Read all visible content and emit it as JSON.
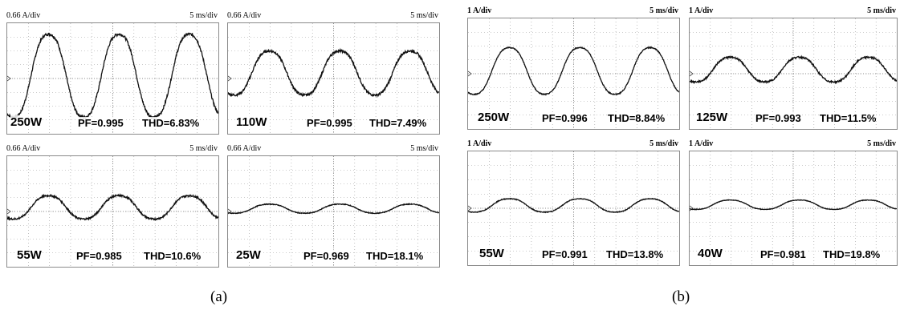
{
  "captions": [
    "(a)",
    "(b)"
  ],
  "chart_data": [
    {
      "group": "a",
      "type": "line",
      "ydiv": "0.66 A/div",
      "xdiv": "5 ms/div",
      "label_power": "250W",
      "label_pf": "PF=0.995",
      "label_thd": "THD=6.83%",
      "amplitude_div": 3.2,
      "offset_div": 0.2,
      "cycles": 3,
      "noise": 0.03
    },
    {
      "group": "a",
      "type": "line",
      "ydiv": "0.66 A/div",
      "xdiv": "5 ms/div",
      "label_power": "110W",
      "label_pf": "PF=0.995",
      "label_thd": "THD=7.49%",
      "amplitude_div": 1.7,
      "offset_div": 0.4,
      "cycles": 3,
      "noise": 0.05
    },
    {
      "group": "a",
      "type": "line",
      "ydiv": "0.66 A/div",
      "xdiv": "5 ms/div",
      "label_power": "55W",
      "label_pf": "PF=0.985",
      "label_thd": "THD=10.6%",
      "amplitude_div": 0.9,
      "offset_div": 0.3,
      "cycles": 3,
      "noise": 0.07
    },
    {
      "group": "a",
      "type": "line",
      "ydiv": "0.66 A/div",
      "xdiv": "5 ms/div",
      "label_power": "25W",
      "label_pf": "PF=0.969",
      "label_thd": "THD=18.1%",
      "amplitude_div": 0.35,
      "offset_div": 0.2,
      "cycles": 3,
      "noise": 0.07
    },
    {
      "group": "b",
      "type": "line",
      "ydiv": "1 A/div",
      "xdiv": "5 ms/div",
      "label_power": "250W",
      "label_pf": "PF=0.996",
      "label_thd": "THD=8.84%",
      "amplitude_div": 1.8,
      "offset_div": 0.2,
      "cycles": 3,
      "noise": 0.02
    },
    {
      "group": "b",
      "type": "line",
      "ydiv": "1 A/div",
      "xdiv": "5 ms/div",
      "label_power": "125W",
      "label_pf": "PF=0.993",
      "label_thd": "THD=11.5%",
      "amplitude_div": 0.95,
      "offset_div": 0.3,
      "cycles": 3,
      "noise": 0.06
    },
    {
      "group": "b",
      "type": "line",
      "ydiv": "1 A/div",
      "xdiv": "5 ms/div",
      "label_power": "55W",
      "label_pf": "PF=0.991",
      "label_thd": "THD=13.8%",
      "amplitude_div": 0.5,
      "offset_div": 0.2,
      "cycles": 3,
      "noise": 0.05
    },
    {
      "group": "b",
      "type": "line",
      "ydiv": "1 A/div",
      "xdiv": "5 ms/div",
      "label_power": "40W",
      "label_pf": "PF=0.981",
      "label_thd": "THD=19.8%",
      "amplitude_div": 0.35,
      "offset_div": 0.25,
      "cycles": 3,
      "noise": 0.05
    }
  ]
}
